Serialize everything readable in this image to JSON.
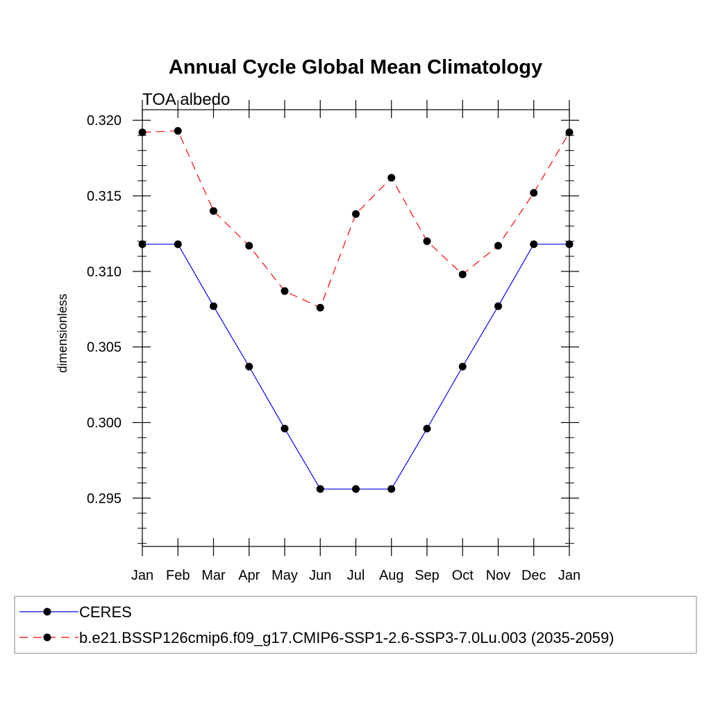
{
  "chart_data": {
    "type": "line",
    "title": "Annual Cycle Global Mean Climatology",
    "subtitle": "TOA albedo",
    "ylabel": "dimensionless",
    "xlabel": "",
    "categories": [
      "Jan",
      "Feb",
      "Mar",
      "Apr",
      "May",
      "Jun",
      "Jul",
      "Aug",
      "Sep",
      "Oct",
      "Nov",
      "Dec",
      "Jan"
    ],
    "ylim": [
      0.2918,
      0.3207
    ],
    "yticks": [
      0.295,
      0.3,
      0.305,
      0.31,
      0.315,
      0.32
    ],
    "ytick_labels": [
      "0.295",
      "0.300",
      "0.305",
      "0.310",
      "0.315",
      "0.320"
    ],
    "series": [
      {
        "name": "CERES",
        "color": "#0000ff",
        "dash": "solid",
        "values": [
          0.3118,
          0.3118,
          0.3077,
          0.3037,
          0.2996,
          0.2956,
          0.2956,
          0.2956,
          0.2996,
          0.3037,
          0.3077,
          0.3118,
          0.3118
        ]
      },
      {
        "name": "b.e21.BSSP126cmip6.f09_g17.CMIP6-SSP1-2.6-SSP3-7.0Lu.003 (2035-2059)",
        "color": "#ff0000",
        "dash": "dashed",
        "values": [
          0.3192,
          0.3193,
          0.314,
          0.3117,
          0.3087,
          0.3076,
          0.3138,
          0.3162,
          0.312,
          0.3098,
          0.3117,
          0.3152,
          0.3192
        ]
      }
    ],
    "grid": false,
    "legend_position": "bottom"
  }
}
